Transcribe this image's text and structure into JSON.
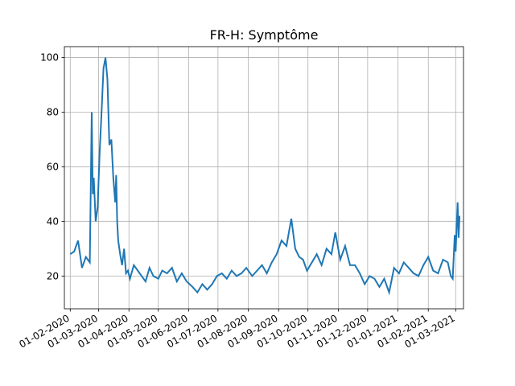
{
  "chart_data": {
    "type": "line",
    "title": "FR-H: Symptôme",
    "xlabel": "",
    "ylabel": "",
    "x_ticks": [
      "01-02-2020",
      "01-03-2020",
      "01-04-2020",
      "01-05-2020",
      "01-06-2020",
      "01-07-2020",
      "01-08-2020",
      "01-09-2020",
      "01-10-2020",
      "01-11-2020",
      "01-12-2020",
      "01-01-2021",
      "01-02-2021",
      "01-03-2021"
    ],
    "y_ticks": [
      20,
      40,
      60,
      80,
      100
    ],
    "ylim": [
      8,
      104
    ],
    "xlim": [
      "2020-01-26",
      "2021-03-09"
    ],
    "grid": true,
    "line_color": "#1f77b4",
    "series": [
      {
        "x": [
          "2020-02-01",
          "2020-02-05",
          "2020-02-09",
          "2020-02-13",
          "2020-02-17",
          "2020-02-21",
          "2020-02-23",
          "2020-02-24",
          "2020-02-25",
          "2020-02-27",
          "2020-02-29",
          "2020-03-02",
          "2020-03-04",
          "2020-03-06",
          "2020-03-08",
          "2020-03-10",
          "2020-03-12",
          "2020-03-14",
          "2020-03-16",
          "2020-03-18",
          "2020-03-19",
          "2020-03-20",
          "2020-03-21",
          "2020-03-23",
          "2020-03-25",
          "2020-03-27",
          "2020-03-29",
          "2020-03-31",
          "2020-04-02",
          "2020-04-06",
          "2020-04-10",
          "2020-04-14",
          "2020-04-18",
          "2020-04-22",
          "2020-04-26",
          "2020-05-01",
          "2020-05-05",
          "2020-05-10",
          "2020-05-15",
          "2020-05-20",
          "2020-05-25",
          "2020-05-30",
          "2020-06-05",
          "2020-06-10",
          "2020-06-15",
          "2020-06-20",
          "2020-06-25",
          "2020-06-30",
          "2020-07-05",
          "2020-07-10",
          "2020-07-15",
          "2020-07-20",
          "2020-07-25",
          "2020-07-30",
          "2020-08-05",
          "2020-08-10",
          "2020-08-15",
          "2020-08-20",
          "2020-08-25",
          "2020-08-30",
          "2020-09-04",
          "2020-09-09",
          "2020-09-14",
          "2020-09-18",
          "2020-09-22",
          "2020-09-26",
          "2020-09-30",
          "2020-10-05",
          "2020-10-10",
          "2020-10-15",
          "2020-10-20",
          "2020-10-25",
          "2020-10-29",
          "2020-11-03",
          "2020-11-08",
          "2020-11-13",
          "2020-11-18",
          "2020-11-23",
          "2020-11-28",
          "2020-12-03",
          "2020-12-08",
          "2020-12-13",
          "2020-12-18",
          "2020-12-23",
          "2020-12-28",
          "2021-01-02",
          "2021-01-07",
          "2021-01-12",
          "2021-01-17",
          "2021-01-22",
          "2021-01-27",
          "2021-02-01",
          "2021-02-06",
          "2021-02-11",
          "2021-02-16",
          "2021-02-21",
          "2021-02-24",
          "2021-02-26",
          "2021-02-28",
          "2021-03-01",
          "2021-03-02",
          "2021-03-03",
          "2021-03-04",
          "2021-03-05"
        ],
        "values": [
          28,
          29,
          33,
          23,
          27,
          25,
          80,
          50,
          56,
          40,
          45,
          65,
          80,
          96,
          100,
          92,
          68,
          70,
          56,
          47,
          57,
          40,
          33,
          28,
          24,
          30,
          21,
          22,
          19,
          24,
          22,
          20,
          18,
          23,
          20,
          19,
          22,
          21,
          23,
          18,
          21,
          18,
          16,
          14,
          17,
          15,
          17,
          20,
          21,
          19,
          22,
          20,
          21,
          23,
          20,
          22,
          24,
          21,
          25,
          28,
          33,
          31,
          41,
          30,
          27,
          26,
          22,
          25,
          28,
          24,
          30,
          28,
          36,
          26,
          31,
          24,
          24,
          21,
          17,
          20,
          19,
          16,
          19,
          14,
          23,
          21,
          25,
          23,
          21,
          20,
          24,
          27,
          22,
          21,
          26,
          25,
          20,
          19,
          35,
          29,
          38,
          47,
          34,
          42
        ]
      }
    ]
  }
}
